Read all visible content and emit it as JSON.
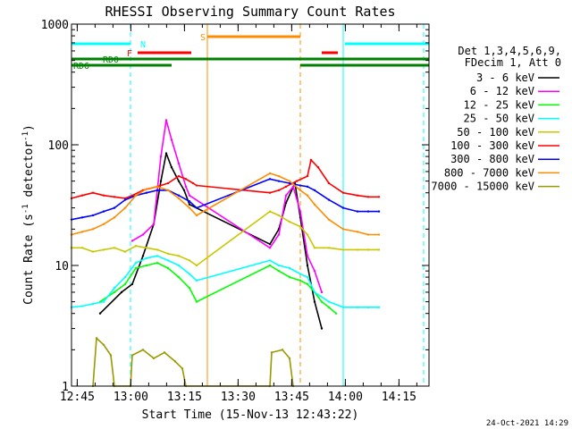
{
  "chart_data": {
    "type": "line",
    "title": "RHESSI Observing Summary Count Rates",
    "xlabel": "Start Time (15-Nov-13 12:43:22)",
    "ylabel_main": "Count Rate (s",
    "ylabel_sup1": "-1",
    "ylabel_mid": " detector",
    "ylabel_sup2": "-1",
    "ylabel_end": ")",
    "yscale": "log",
    "xlim_minutes": [
      0,
      100
    ],
    "ylim": [
      1,
      1000
    ],
    "x_ticks": [
      {
        "label": "12:45",
        "minute": 1.6
      },
      {
        "label": "13:00",
        "minute": 16.6
      },
      {
        "label": "13:15",
        "minute": 31.6
      },
      {
        "label": "13:30",
        "minute": 46.6
      },
      {
        "label": "13:45",
        "minute": 61.6
      },
      {
        "label": "14:00",
        "minute": 76.6
      },
      {
        "label": "14:15",
        "minute": 91.6
      }
    ],
    "y_ticks": [
      {
        "label": "1",
        "value": 1
      },
      {
        "label": "10",
        "value": 10
      },
      {
        "label": "100",
        "value": 100
      },
      {
        "label": "1000",
        "value": 1000
      }
    ],
    "legend_header": [
      "Det 1,3,4,5,6,9,",
      "FDecim 1, Att 0"
    ],
    "series": [
      {
        "name": "3 - 6 keV",
        "color": "#000000",
        "values": [
          [
            8.0,
            4.0
          ],
          [
            14.0,
            6.0
          ],
          [
            17.0,
            7.0
          ],
          [
            20.0,
            12.0
          ],
          [
            23.0,
            22.0
          ],
          [
            25.0,
            50.0
          ],
          [
            26.5,
            85.0
          ],
          [
            28.0,
            65.0
          ],
          [
            30.0,
            50.0
          ],
          [
            31.5,
            42.0
          ],
          [
            33.0,
            32.0
          ],
          [
            55.5,
            15.0
          ],
          [
            58.0,
            20.0
          ],
          [
            60.0,
            33.0
          ],
          [
            62.5,
            48.0
          ],
          [
            64.0,
            25.0
          ],
          [
            66.0,
            10.0
          ],
          [
            68.0,
            5.0
          ],
          [
            70.0,
            3.0
          ]
        ]
      },
      {
        "name": "6 - 12 keV",
        "color": "#ff00ff",
        "values": [
          [
            17.0,
            16.0
          ],
          [
            20.0,
            18.0
          ],
          [
            23.0,
            22.0
          ],
          [
            25.0,
            80.0
          ],
          [
            26.5,
            160.0
          ],
          [
            28.0,
            110.0
          ],
          [
            30.0,
            70.0
          ],
          [
            32.0,
            45.0
          ],
          [
            33.0,
            38.0
          ],
          [
            55.5,
            14.0
          ],
          [
            58.0,
            18.0
          ],
          [
            60.0,
            38.0
          ],
          [
            62.0,
            45.0
          ],
          [
            64.0,
            28.0
          ],
          [
            66.0,
            12.0
          ],
          [
            68.0,
            9.0
          ],
          [
            70.0,
            6.0
          ]
        ]
      },
      {
        "name": "12 - 25 keV",
        "color": "#00ff00",
        "values": [
          [
            8.0,
            5.0
          ],
          [
            12.0,
            6.0
          ],
          [
            15.0,
            7.0
          ],
          [
            18.0,
            9.5
          ],
          [
            21.0,
            10.0
          ],
          [
            24.0,
            10.5
          ],
          [
            27.0,
            9.5
          ],
          [
            30.0,
            8.0
          ],
          [
            33.0,
            6.5
          ],
          [
            35.0,
            5.0
          ],
          [
            55.5,
            10.0
          ],
          [
            58.0,
            9.0
          ],
          [
            61.0,
            8.0
          ],
          [
            64.0,
            7.5
          ],
          [
            66.0,
            7.0
          ],
          [
            68.0,
            6.0
          ],
          [
            70.0,
            5.0
          ],
          [
            72.0,
            4.5
          ],
          [
            74.0,
            4.0
          ]
        ]
      },
      {
        "name": "25 - 50 keV",
        "color": "#00ffff",
        "values": [
          [
            0.0,
            4.5
          ],
          [
            3.0,
            4.6
          ],
          [
            6.0,
            4.8
          ],
          [
            9.0,
            5.0
          ],
          [
            12.0,
            6.5
          ],
          [
            15.0,
            8.0
          ],
          [
            18.0,
            10.5
          ],
          [
            21.0,
            11.5
          ],
          [
            24.0,
            12.0
          ],
          [
            27.0,
            11.0
          ],
          [
            30.0,
            10.0
          ],
          [
            33.0,
            8.5
          ],
          [
            35.0,
            7.5
          ],
          [
            55.5,
            11.0
          ],
          [
            58.0,
            10.0
          ],
          [
            61.0,
            9.5
          ],
          [
            64.0,
            8.5
          ],
          [
            66.0,
            8.0
          ],
          [
            68.0,
            6.0
          ],
          [
            72.0,
            5.0
          ],
          [
            76.0,
            4.5
          ],
          [
            80.0,
            4.5
          ],
          [
            83.0,
            4.5
          ],
          [
            86.0,
            4.5
          ]
        ]
      },
      {
        "name": "50 - 100 keV",
        "color": "#c8c800",
        "values": [
          [
            0.0,
            14.0
          ],
          [
            3.0,
            14.0
          ],
          [
            6.0,
            13.0
          ],
          [
            9.0,
            13.5
          ],
          [
            12.0,
            14.0
          ],
          [
            15.0,
            13.0
          ],
          [
            18.0,
            14.5
          ],
          [
            21.0,
            14.0
          ],
          [
            24.0,
            13.5
          ],
          [
            27.0,
            12.5
          ],
          [
            30.0,
            12.0
          ],
          [
            33.0,
            11.0
          ],
          [
            35.0,
            10.0
          ],
          [
            55.5,
            28.0
          ],
          [
            58.0,
            26.0
          ],
          [
            61.0,
            23.0
          ],
          [
            64.0,
            21.0
          ],
          [
            66.0,
            18.0
          ],
          [
            68.0,
            14.0
          ],
          [
            72.0,
            14.0
          ],
          [
            76.0,
            13.5
          ],
          [
            80.0,
            13.5
          ],
          [
            83.0,
            13.5
          ],
          [
            86.0,
            13.5
          ]
        ]
      },
      {
        "name": "100 - 300 keV",
        "color": "#ff0000",
        "values": [
          [
            0.0,
            36.0
          ],
          [
            3.0,
            38.0
          ],
          [
            6.0,
            40.0
          ],
          [
            9.0,
            38.0
          ],
          [
            12.0,
            37.0
          ],
          [
            15.0,
            36.0
          ],
          [
            17.0,
            38.0
          ],
          [
            20.0,
            42.0
          ],
          [
            24.0,
            45.0
          ],
          [
            27.0,
            48.0
          ],
          [
            30.0,
            55.0
          ],
          [
            32.0,
            52.0
          ],
          [
            34.0,
            48.0
          ],
          [
            35.0,
            46.0
          ],
          [
            55.5,
            40.0
          ],
          [
            58.0,
            42.0
          ],
          [
            60.0,
            45.0
          ],
          [
            63.0,
            50.0
          ],
          [
            66.0,
            55.0
          ],
          [
            67.0,
            75.0
          ],
          [
            69.0,
            65.0
          ],
          [
            72.0,
            48.0
          ],
          [
            76.0,
            40.0
          ],
          [
            80.0,
            38.0
          ],
          [
            83.0,
            37.0
          ],
          [
            86.0,
            37.0
          ]
        ]
      },
      {
        "name": "300 - 800 keV",
        "color": "#0000ff",
        "values": [
          [
            0.0,
            24.0
          ],
          [
            3.0,
            25.0
          ],
          [
            6.0,
            26.0
          ],
          [
            9.0,
            28.0
          ],
          [
            12.0,
            30.0
          ],
          [
            15.0,
            35.0
          ],
          [
            18.0,
            38.0
          ],
          [
            21.0,
            40.0
          ],
          [
            24.0,
            42.0
          ],
          [
            27.0,
            42.0
          ],
          [
            30.0,
            38.0
          ],
          [
            33.0,
            34.0
          ],
          [
            35.0,
            30.0
          ],
          [
            55.5,
            52.0
          ],
          [
            58.0,
            50.0
          ],
          [
            61.0,
            48.0
          ],
          [
            64.0,
            46.0
          ],
          [
            66.0,
            45.0
          ],
          [
            68.0,
            42.0
          ],
          [
            72.0,
            35.0
          ],
          [
            76.0,
            30.0
          ],
          [
            80.0,
            28.0
          ],
          [
            83.0,
            28.0
          ],
          [
            86.0,
            28.0
          ]
        ]
      },
      {
        "name": "800 - 7000 keV",
        "color": "#ff8c00",
        "values": [
          [
            0.0,
            18.0
          ],
          [
            3.0,
            19.0
          ],
          [
            6.0,
            20.0
          ],
          [
            9.0,
            22.0
          ],
          [
            12.0,
            25.0
          ],
          [
            15.0,
            30.0
          ],
          [
            18.0,
            38.0
          ],
          [
            21.0,
            43.0
          ],
          [
            24.0,
            45.0
          ],
          [
            27.0,
            42.0
          ],
          [
            30.0,
            36.0
          ],
          [
            33.0,
            30.0
          ],
          [
            35.0,
            26.0
          ],
          [
            55.5,
            58.0
          ],
          [
            58.0,
            55.0
          ],
          [
            61.0,
            50.0
          ],
          [
            64.0,
            42.0
          ],
          [
            66.0,
            38.0
          ],
          [
            68.0,
            32.0
          ],
          [
            72.0,
            24.0
          ],
          [
            76.0,
            20.0
          ],
          [
            80.0,
            19.0
          ],
          [
            83.0,
            18.0
          ],
          [
            86.0,
            18.0
          ]
        ]
      },
      {
        "name": "7000 - 15000 keV",
        "color": "#999900",
        "values": [
          [
            6.0,
            1.0
          ],
          [
            7.0,
            2.5
          ],
          [
            9.0,
            2.2
          ],
          [
            11.0,
            1.8
          ],
          [
            12.0,
            1.0
          ],
          [
            16.5,
            1.0
          ],
          [
            17.0,
            1.8
          ],
          [
            20.0,
            2.0
          ],
          [
            23.0,
            1.7
          ],
          [
            26.0,
            1.9
          ],
          [
            29.0,
            1.6
          ],
          [
            31.0,
            1.4
          ],
          [
            32.0,
            1.0
          ],
          [
            55.5,
            1.0
          ],
          [
            56.0,
            1.9
          ],
          [
            59.0,
            2.0
          ],
          [
            61.0,
            1.7
          ],
          [
            62.0,
            1.0
          ]
        ]
      }
    ],
    "flag_bars": [
      {
        "label": "N",
        "color": "#00ffff",
        "segments": [
          [
            0.0,
            16.5
          ],
          [
            76.5,
            100.0
          ]
        ]
      },
      {
        "label": "F",
        "color": "#ff0000",
        "segments": [
          [
            18.5,
            33.5
          ],
          [
            70.0,
            74.5
          ]
        ]
      },
      {
        "label": "S",
        "color": "#ff8c00",
        "segments": [
          [
            38.0,
            64.0
          ]
        ]
      },
      {
        "label": "RD0",
        "color": "#008000",
        "segments": [
          [
            0.0,
            30.0
          ],
          [
            30.0,
            100.0
          ]
        ]
      },
      {
        "label": "RD6",
        "color": "#008000",
        "segments": [
          [
            0.0,
            16.5
          ],
          [
            16.5,
            28.0
          ],
          [
            64.0,
            74.5
          ],
          [
            74.5,
            100.0
          ]
        ]
      }
    ],
    "vertical_markers": [
      {
        "minute": 16.5,
        "color": "#00ffff",
        "style": "dashed"
      },
      {
        "minute": 38.0,
        "color": "#ff8c00",
        "style": "solid"
      },
      {
        "minute": 64.0,
        "color": "#ff8c00",
        "style": "dashed"
      },
      {
        "minute": 76.0,
        "color": "#00ffff",
        "style": "solid"
      },
      {
        "minute": 98.5,
        "color": "#00ffff",
        "style": "dashed"
      }
    ],
    "footer_date": "24-Oct-2021 14:29"
  }
}
